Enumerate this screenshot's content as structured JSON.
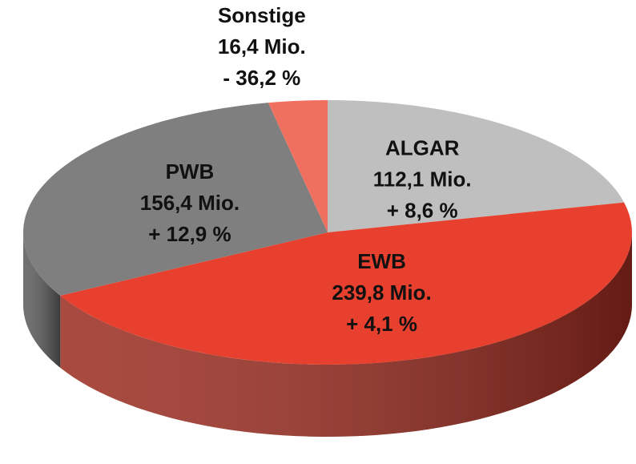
{
  "chart_data": {
    "type": "pie",
    "categories": [
      "ALGAR",
      "EWB",
      "PWB",
      "Sonstige"
    ],
    "values": [
      112.1,
      239.8,
      156.4,
      16.4
    ],
    "value_labels": [
      "112,1 Mio.",
      "239,8 Mio.",
      "156,4 Mio.",
      "16,4 Mio."
    ],
    "change_labels": [
      "+ 8,6 %",
      "+ 4,1 %",
      "+ 12,9 %",
      "- 36,2 %"
    ],
    "colors": [
      "#bfbfbf",
      "#e8402e",
      "#7f7f7f",
      "#f07060"
    ],
    "side_colors": [
      "#8c8c8c",
      "#9a2a1e",
      "#5a5a5a",
      "#b04a3e"
    ]
  }
}
